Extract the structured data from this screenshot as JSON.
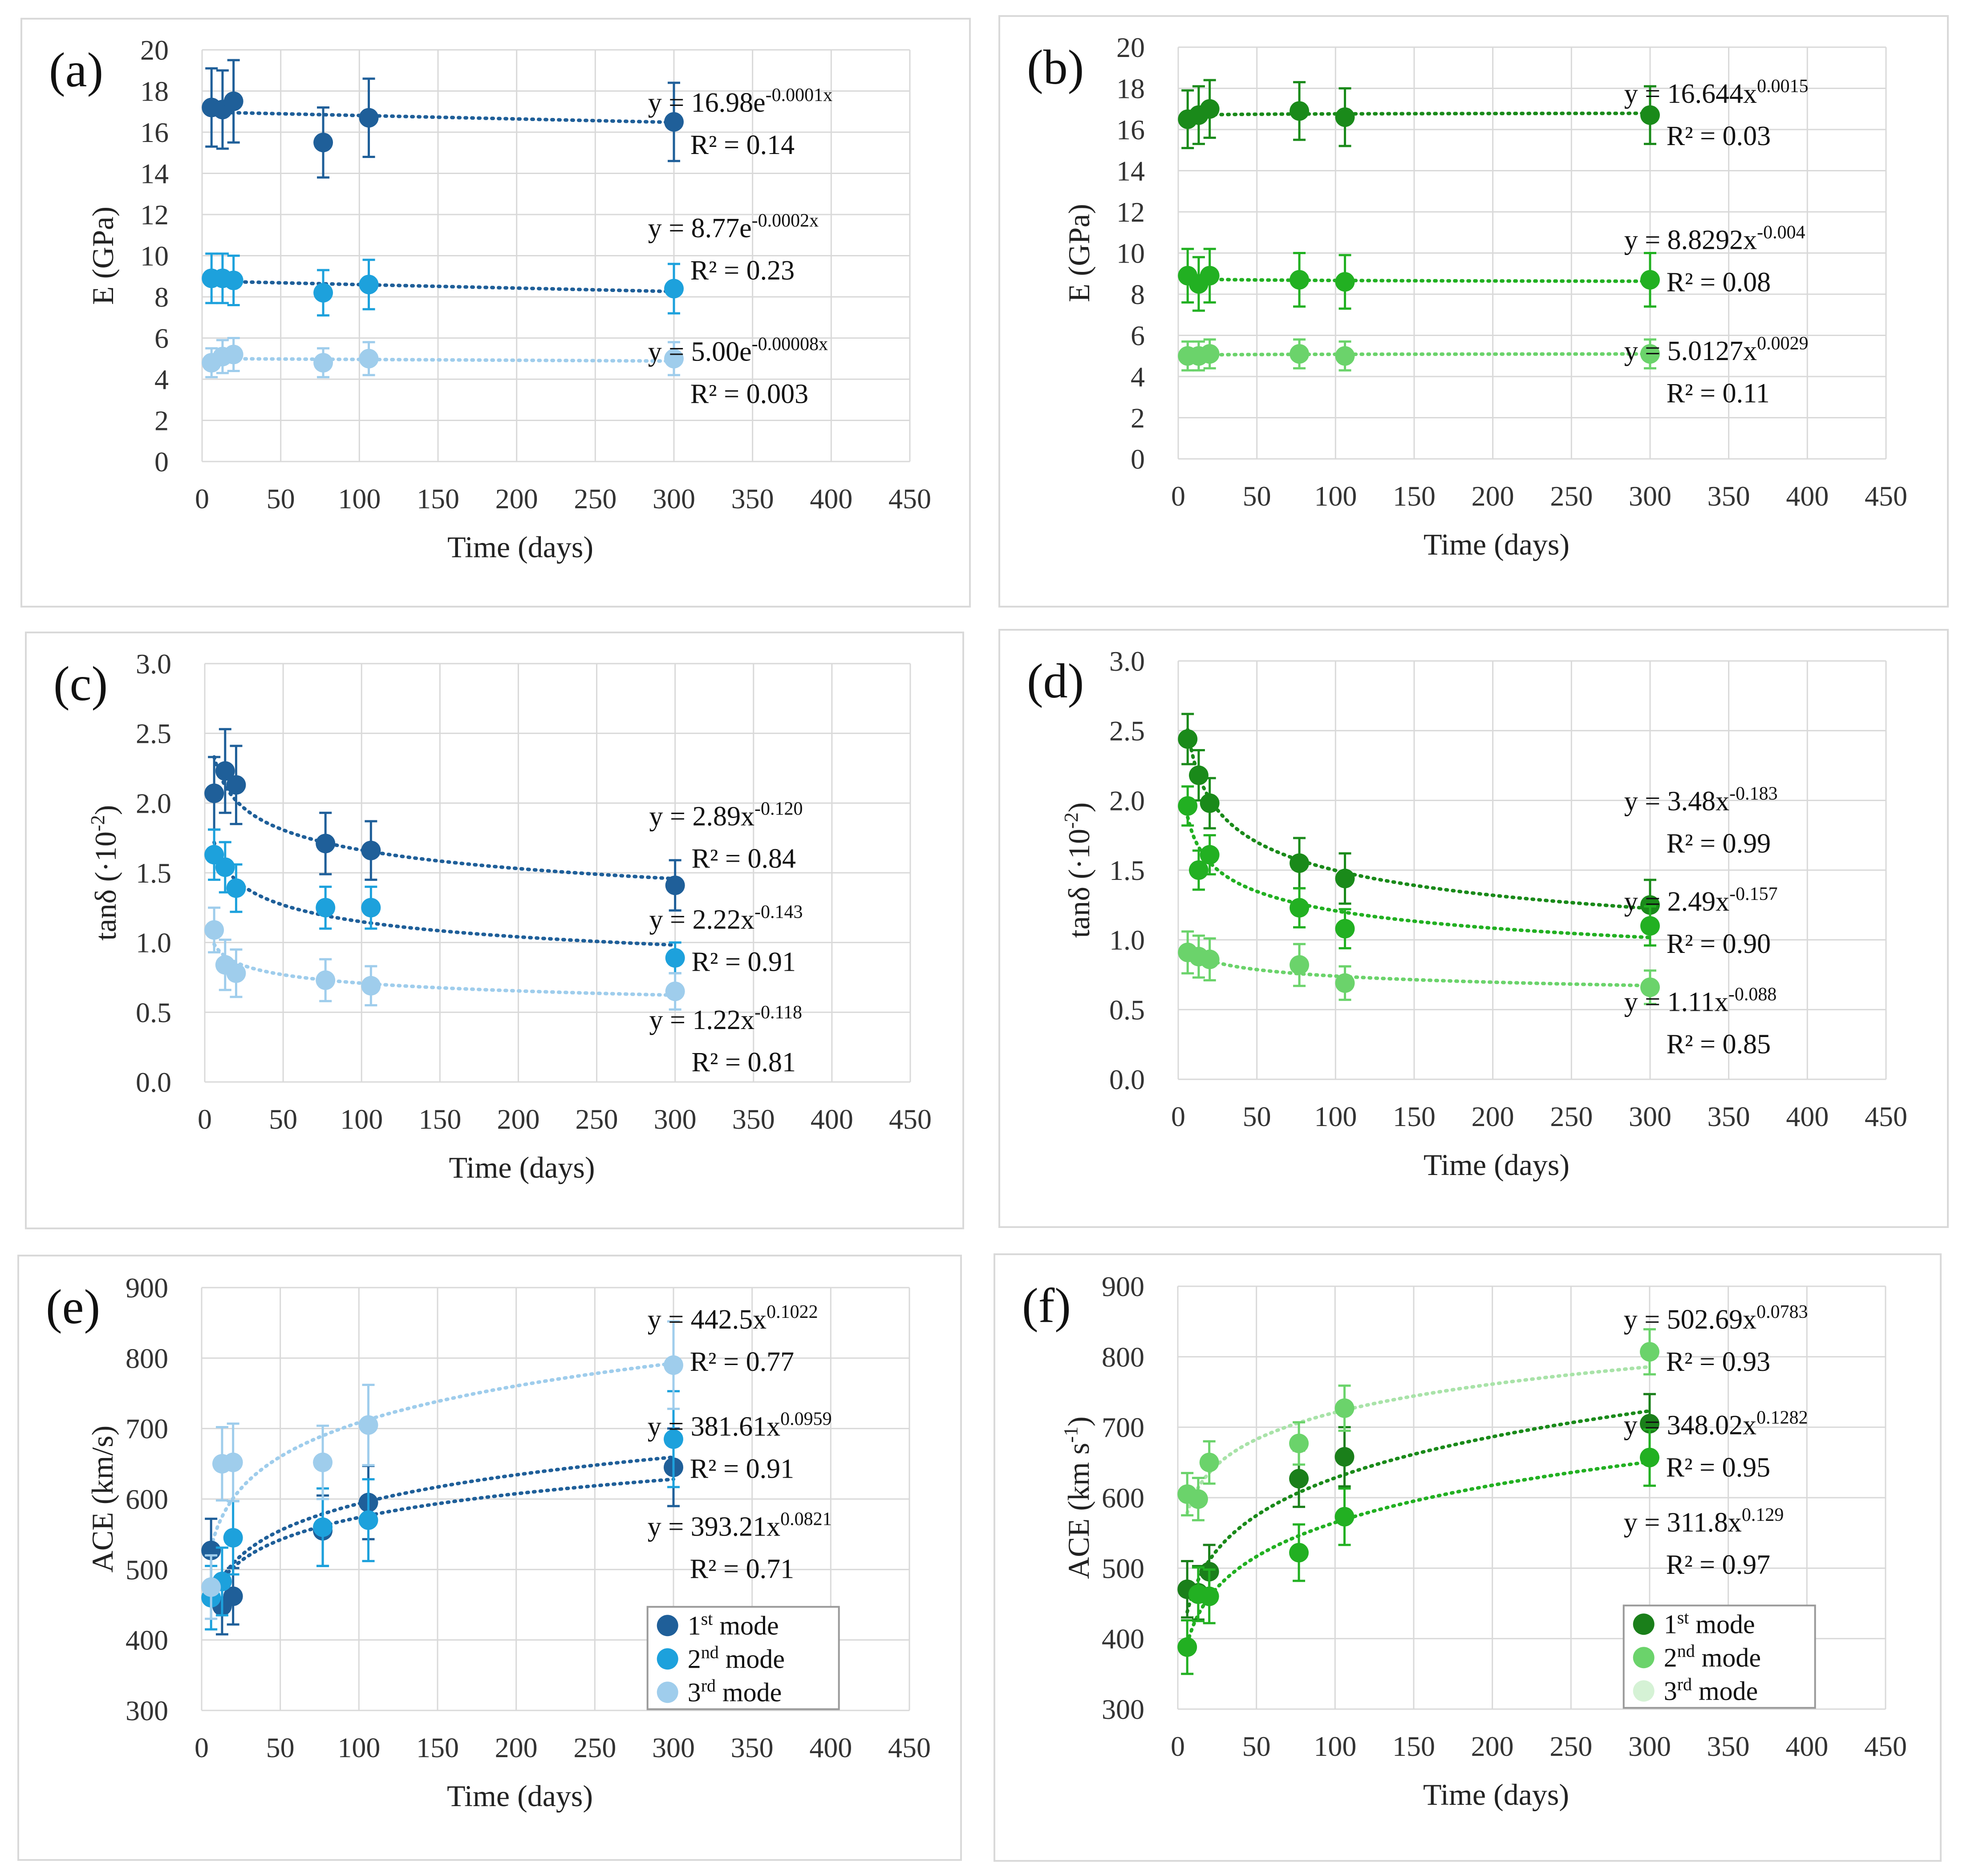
{
  "chart_data": [
    {
      "panel_label": "(a)",
      "type": "scatter",
      "color_theme": "blue",
      "xlabel": "Time (days)",
      "ylabel": "E (GPa)",
      "xlim": [
        0,
        450
      ],
      "ylim": [
        0,
        20
      ],
      "xticks": [
        "0",
        "50",
        "100",
        "150",
        "200",
        "250",
        "300",
        "350",
        "400",
        "450"
      ],
      "yticks": [
        "0",
        "2",
        "4",
        "6",
        "8",
        "10",
        "12",
        "14",
        "16",
        "18",
        "20"
      ],
      "grid": true,
      "x": [
        6,
        13,
        20,
        77,
        106,
        300
      ],
      "series": [
        {
          "name": "1st mode",
          "color": "#1f5f99",
          "values": [
            17.2,
            17.1,
            17.5,
            15.5,
            16.7,
            16.5
          ],
          "errors": [
            1.9,
            1.9,
            2.0,
            1.7,
            1.9,
            1.9
          ],
          "fit": {
            "kind": "exp",
            "a": 16.98,
            "b": -0.0001
          },
          "fit_color": "#1f5f99",
          "eq_main": "y = 16.98e",
          "eq_exp": "-0.0001x",
          "r2": "R² = 0.14",
          "eq_y": 17.0
        },
        {
          "name": "2nd mode",
          "color": "#1da1dc",
          "values": [
            8.9,
            8.9,
            8.8,
            8.2,
            8.6,
            8.4
          ],
          "errors": [
            1.2,
            1.2,
            1.2,
            1.1,
            1.2,
            1.2
          ],
          "fit": {
            "kind": "exp",
            "a": 8.77,
            "b": -0.0002
          },
          "fit_color": "#1f5f99",
          "eq_main": "y = 8.77e",
          "eq_exp": "-0.0002x",
          "r2": "R² = 0.23",
          "eq_y": 10.9
        },
        {
          "name": "3rd mode",
          "color": "#9fcdec",
          "values": [
            4.8,
            5.1,
            5.2,
            4.8,
            5.0,
            5.0
          ],
          "errors": [
            0.7,
            0.8,
            0.8,
            0.7,
            0.8,
            0.8
          ],
          "fit": {
            "kind": "exp",
            "a": 5.0,
            "b": -8e-05
          },
          "fit_color": "#9fcdec",
          "eq_main": "y = 5.00e",
          "eq_exp": "-0.00008x",
          "r2": "R² = 0.003",
          "eq_y": 4.9
        }
      ]
    },
    {
      "panel_label": "(b)",
      "type": "scatter",
      "color_theme": "green",
      "xlabel": "Time (days)",
      "ylabel": "E (GPa)",
      "xlim": [
        0,
        450
      ],
      "ylim": [
        0,
        20
      ],
      "xticks": [
        "0",
        "50",
        "100",
        "150",
        "200",
        "250",
        "300",
        "350",
        "400",
        "450"
      ],
      "yticks": [
        "0",
        "2",
        "4",
        "6",
        "8",
        "10",
        "12",
        "14",
        "16",
        "18",
        "20"
      ],
      "grid": true,
      "x": [
        6,
        13,
        20,
        77,
        106,
        300
      ],
      "series": [
        {
          "name": "1st mode",
          "color": "#1a8a1a",
          "values": [
            16.5,
            16.7,
            17.0,
            16.9,
            16.6,
            16.7
          ],
          "errors": [
            1.4,
            1.4,
            1.4,
            1.4,
            1.4,
            1.4
          ],
          "fit": {
            "kind": "pow",
            "a": 16.644,
            "b": 0.0015
          },
          "fit_color": "#1a8a1a",
          "eq_main": "y = 16.644x",
          "eq_exp": "0.0015",
          "r2": "R² = 0.03",
          "eq_y": 17.3
        },
        {
          "name": "2nd mode",
          "color": "#22b022",
          "values": [
            8.9,
            8.5,
            8.9,
            8.7,
            8.6,
            8.7
          ],
          "errors": [
            1.3,
            1.3,
            1.3,
            1.3,
            1.3,
            1.3
          ],
          "fit": {
            "kind": "pow",
            "a": 8.8292,
            "b": -0.004
          },
          "fit_color": "#22b022",
          "eq_main": "y = 8.8292x",
          "eq_exp": "-0.004",
          "r2": "R² = 0.08",
          "eq_y": 10.2
        },
        {
          "name": "3rd mode",
          "color": "#6bd36b",
          "values": [
            5.0,
            5.0,
            5.1,
            5.1,
            5.0,
            5.1
          ],
          "errors": [
            0.7,
            0.7,
            0.7,
            0.7,
            0.7,
            0.7
          ],
          "fit": {
            "kind": "pow",
            "a": 5.0127,
            "b": 0.0029
          },
          "fit_color": "#6bd36b",
          "eq_main": "y = 5.0127x",
          "eq_exp": "0.0029",
          "r2": "R² = 0.11",
          "eq_y": 4.8
        }
      ]
    },
    {
      "panel_label": "(c)",
      "type": "scatter",
      "color_theme": "blue",
      "xlabel": "Time (days)",
      "ylabel": "tanδ (·10",
      "ylabel_sup": "-2",
      "ylabel_tail": ")",
      "xlim": [
        0,
        450
      ],
      "ylim": [
        0,
        3
      ],
      "xticks": [
        "0",
        "50",
        "100",
        "150",
        "200",
        "250",
        "300",
        "350",
        "400",
        "450"
      ],
      "yticks": [
        "0.0",
        "0.5",
        "1.0",
        "1.5",
        "2.0",
        "2.5",
        "3.0"
      ],
      "grid": true,
      "x": [
        6,
        13,
        20,
        77,
        106,
        300
      ],
      "series": [
        {
          "name": "1st mode",
          "color": "#1f5f99",
          "values": [
            2.07,
            2.23,
            2.13,
            1.71,
            1.66,
            1.41
          ],
          "errors": [
            0.26,
            0.3,
            0.28,
            0.22,
            0.21,
            0.18
          ],
          "fit": {
            "kind": "pow",
            "a": 2.89,
            "b": -0.12
          },
          "fit_color": "#1f5f99",
          "eq_main": "y = 2.89x",
          "eq_exp": "-0.120",
          "r2": "R² = 0.84",
          "eq_y": 1.84
        },
        {
          "name": "2nd mode",
          "color": "#1da1dc",
          "values": [
            1.63,
            1.54,
            1.39,
            1.25,
            1.25,
            0.89
          ],
          "errors": [
            0.18,
            0.18,
            0.17,
            0.15,
            0.15,
            0.11
          ],
          "fit": {
            "kind": "pow",
            "a": 2.22,
            "b": -0.143
          },
          "fit_color": "#1f5f99",
          "eq_main": "y = 2.22x",
          "eq_exp": "-0.143",
          "r2": "R² = 0.91",
          "eq_y": 1.1
        },
        {
          "name": "3rd mode",
          "color": "#9fcdec",
          "values": [
            1.09,
            0.84,
            0.78,
            0.73,
            0.69,
            0.65
          ],
          "errors": [
            0.16,
            0.18,
            0.17,
            0.15,
            0.14,
            0.13
          ],
          "fit": {
            "kind": "pow",
            "a": 1.22,
            "b": -0.118
          },
          "fit_color": "#9fcdec",
          "eq_main": "y = 1.22x",
          "eq_exp": "-0.118",
          "r2": "R² = 0.81",
          "eq_y": 0.38
        }
      ]
    },
    {
      "panel_label": "(d)",
      "type": "scatter",
      "color_theme": "green",
      "xlabel": "Time (days)",
      "ylabel": "tanδ (·10",
      "ylabel_sup": "-2",
      "ylabel_tail": ")",
      "xlim": [
        0,
        450
      ],
      "ylim": [
        0,
        3
      ],
      "xticks": [
        "0",
        "50",
        "100",
        "150",
        "200",
        "250",
        "300",
        "350",
        "400",
        "450"
      ],
      "yticks": [
        "0.0",
        "0.5",
        "1.0",
        "1.5",
        "2.0",
        "2.5",
        "3.0"
      ],
      "grid": true,
      "x": [
        6,
        13,
        20,
        77,
        106,
        300
      ],
      "series": [
        {
          "name": "1st mode",
          "color": "#1a8a1a",
          "values": [
            2.44,
            2.18,
            1.98,
            1.55,
            1.44,
            1.25
          ],
          "errors": [
            0.18,
            0.18,
            0.18,
            0.18,
            0.18,
            0.18
          ],
          "fit": {
            "kind": "pow",
            "a": 3.48,
            "b": -0.183
          },
          "fit_color": "#1a8a1a",
          "eq_main": "y = 3.48x",
          "eq_exp": "-0.183",
          "r2": "R² = 0.99",
          "eq_y": 1.93
        },
        {
          "name": "2nd mode",
          "color": "#22b022",
          "values": [
            1.96,
            1.5,
            1.61,
            1.23,
            1.08,
            1.1
          ],
          "errors": [
            0.14,
            0.14,
            0.14,
            0.14,
            0.14,
            0.14
          ],
          "fit": {
            "kind": "pow",
            "a": 2.49,
            "b": -0.157
          },
          "fit_color": "#22b022",
          "eq_main": "y = 2.49x",
          "eq_exp": "-0.157",
          "r2": "R² = 0.90",
          "eq_y": 1.21
        },
        {
          "name": "3rd mode",
          "color": "#6bd36b",
          "values": [
            0.91,
            0.88,
            0.86,
            0.82,
            0.69,
            0.66
          ],
          "errors": [
            0.15,
            0.15,
            0.15,
            0.15,
            0.12,
            0.12
          ],
          "fit": {
            "kind": "pow",
            "a": 1.11,
            "b": -0.088
          },
          "fit_color": "#6bd36b",
          "eq_main": "y = 1.11x",
          "eq_exp": "-0.088",
          "r2": "R² = 0.85",
          "eq_y": 0.49
        }
      ]
    },
    {
      "panel_label": "(e)",
      "type": "scatter",
      "color_theme": "blue",
      "xlabel": "Time (days)",
      "ylabel": "ACE (km/s)",
      "xlim": [
        0,
        450
      ],
      "ylim": [
        300,
        900
      ],
      "xticks": [
        "0",
        "50",
        "100",
        "150",
        "200",
        "250",
        "300",
        "350",
        "400",
        "450"
      ],
      "yticks": [
        "300",
        "400",
        "500",
        "600",
        "700",
        "800",
        "900"
      ],
      "grid": true,
      "x": [
        6,
        13,
        20,
        77,
        106,
        300
      ],
      "series": [
        {
          "name": "1st mode",
          "color": "#1f5f99",
          "values": [
            527,
            448,
            462,
            555,
            595,
            645
          ],
          "errors": [
            45,
            40,
            40,
            50,
            52,
            55
          ],
          "fit": {
            "kind": "pow",
            "a": 393.21,
            "b": 0.0821
          },
          "fit_color": "#1f5f99",
          "eq_main": "y = 393.21x",
          "eq_exp": "0.0821",
          "r2": "R² = 0.71",
          "eq_y": 548
        },
        {
          "name": "2nd mode",
          "color": "#1da1dc",
          "values": [
            460,
            483,
            545,
            560,
            570,
            685
          ],
          "errors": [
            45,
            48,
            52,
            55,
            58,
            68
          ],
          "fit": {
            "kind": "pow",
            "a": 381.61,
            "b": 0.0959
          },
          "fit_color": "#1f5f99",
          "eq_main": "y = 381.61x",
          "eq_exp": "0.0959",
          "r2": "R² = 0.91",
          "eq_y": 690
        },
        {
          "name": "3rd mode",
          "color": "#9fcdec",
          "values": [
            475,
            650,
            652,
            652,
            705,
            790
          ],
          "errors": [
            45,
            52,
            55,
            52,
            57,
            62
          ],
          "fit": {
            "kind": "pow",
            "a": 442.5,
            "b": 0.1022
          },
          "fit_color": "#9fcdec",
          "eq_main": "y = 442.5x",
          "eq_exp": "0.1022",
          "r2": "R² = 0.77",
          "eq_y": 842
        }
      ],
      "legend": [
        "1st mode",
        "2nd mode",
        "3rd mode"
      ]
    },
    {
      "panel_label": "(f)",
      "type": "scatter",
      "color_theme": "green",
      "xlabel": "Time (days)",
      "ylabel": "ACE (km s",
      "ylabel_sup": "-1",
      "ylabel_tail": ")",
      "xlim": [
        0,
        450
      ],
      "ylim": [
        300,
        900
      ],
      "xticks": [
        "0",
        "50",
        "100",
        "150",
        "200",
        "250",
        "300",
        "350",
        "400",
        "450"
      ],
      "yticks": [
        "300",
        "400",
        "500",
        "600",
        "700",
        "800",
        "900"
      ],
      "grid": true,
      "x": [
        6,
        13,
        20,
        77,
        106,
        300
      ],
      "series": [
        {
          "name": "1st mode",
          "color": "#1a7f1a",
          "values": [
            470,
            465,
            495,
            627,
            658,
            705
          ],
          "errors": [
            40,
            38,
            38,
            40,
            42,
            42
          ],
          "fit": {
            "kind": "pow",
            "a": 348.02,
            "b": 0.1282
          },
          "fit_color": "#1a8a1a",
          "eq_main": "y = 348.02x",
          "eq_exp": "0.1282",
          "r2": "R² = 0.95",
          "eq_y": 690
        },
        {
          "name": "2nd mode",
          "color": "#22b022",
          "values": [
            388,
            463,
            460,
            522,
            573,
            657
          ],
          "errors": [
            38,
            38,
            38,
            40,
            40,
            40
          ],
          "fit": {
            "kind": "pow",
            "a": 311.8,
            "b": 0.129
          },
          "fit_color": "#22b022",
          "eq_main": "y = 311.8x",
          "eq_exp": "0.129",
          "r2": "R² = 0.97",
          "eq_y": 552
        },
        {
          "name": "3rd mode",
          "color": "#6bd36b",
          "values": [
            605,
            598,
            650,
            677,
            727,
            807
          ],
          "errors": [
            30,
            30,
            30,
            30,
            32,
            32
          ],
          "fit": {
            "kind": "pow",
            "a": 502.69,
            "b": 0.0783
          },
          "fit_color": "#a9e3a9",
          "eq_main": "y = 502.69x",
          "eq_exp": "0.0783",
          "r2": "R² = 0.93",
          "eq_y": 840
        }
      ],
      "legend": [
        "1st mode",
        "2nd mode",
        "3rd mode"
      ],
      "legend_colors": [
        "#1a7f1a",
        "#6bd36b",
        "#d5f2d5"
      ]
    }
  ]
}
